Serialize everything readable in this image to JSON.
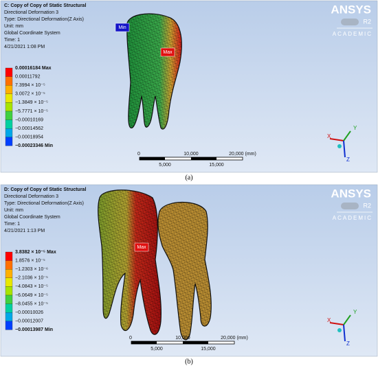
{
  "panels": [
    {
      "header": [
        "C: Copy of Copy of Static Structural",
        "Directional Deformation 3",
        "Type: Directional Deformation(Z Axis)",
        "Unit: mm",
        "Global Coordinate System",
        "Time: 1",
        "4/21/2021 1:08 PM"
      ],
      "legend": [
        "0.00016184 Max",
        "0.00011792",
        "7.3994 × 10⁻⁵",
        "3.0072 × 10⁻⁵",
        "−1.3849 × 10⁻⁵",
        "−5.7771 × 10⁻⁵",
        "−0.00010169",
        "−0.00014562",
        "−0.00018954",
        "−0.00023346 Min"
      ],
      "tags": [
        "Min",
        "Max"
      ],
      "scale": [
        "0",
        "10,000",
        "20,000 (mm)",
        "5,000",
        "15,000"
      ],
      "axes": [
        "X",
        "Y",
        "Z"
      ],
      "logo": [
        "ANSYS",
        "R2",
        "ACADEMIC"
      ],
      "caption": "(a)"
    },
    {
      "header": [
        "D: Copy of Copy of Static Structural",
        "Directional Deformation 3",
        "Type: Directional Deformation(Z Axis)",
        "Unit: mm",
        "Global Coordinate System",
        "Time: 1",
        "4/21/2021 1:13 PM"
      ],
      "legend": [
        "3.8382 × 10⁻⁵ Max",
        "1.8576 × 10⁻⁵",
        "−1.2303 × 10⁻⁶",
        "−2.1036 × 10⁻⁵",
        "−4.0843 × 10⁻⁵",
        "−6.0649 × 10⁻⁵",
        "−8.0455 × 10⁻⁵",
        "−0.00010026",
        "−0.00012007",
        "−0.00013987 Min"
      ],
      "tags": [
        "Max"
      ],
      "scale": [
        "0",
        "10,000",
        "20,000 (mm)",
        "5,000",
        "15,000"
      ],
      "axes": [
        "X",
        "Y",
        "Z"
      ],
      "logo": [
        "ANSYS",
        "R2",
        "ACADEMIC"
      ],
      "caption": "(b)"
    }
  ]
}
